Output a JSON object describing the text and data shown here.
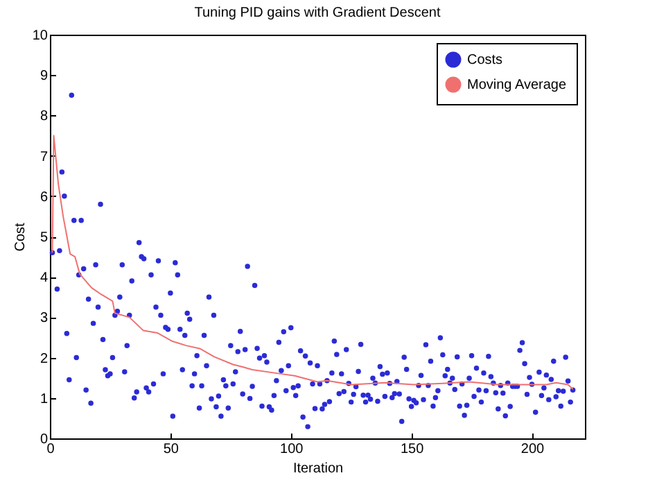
{
  "chart_data": {
    "type": "scatter",
    "title": "Tuning PID gains with Gradient Descent",
    "xlabel": "Iteration",
    "ylabel": "Cost",
    "xlim": [
      0,
      222
    ],
    "xticks": [
      0,
      50,
      100,
      150,
      200
    ],
    "ylim": [
      0,
      10
    ],
    "yticks": [
      0,
      1,
      2,
      3,
      4,
      5,
      6,
      7,
      8,
      9,
      10
    ],
    "grid": false,
    "legend": "top right",
    "series": [
      {
        "name": "Costs",
        "marker": "circle",
        "color": "#2b2bd6",
        "x": [
          1,
          3,
          4,
          5,
          6,
          7,
          8,
          9,
          10,
          11,
          12,
          13,
          14,
          15,
          16,
          17,
          18,
          19,
          20,
          21,
          22,
          23,
          24,
          25,
          26,
          27,
          28,
          29,
          30,
          31,
          32,
          33,
          34,
          35,
          36,
          37,
          38,
          39,
          40,
          41,
          42,
          43,
          44,
          45,
          46,
          47,
          48,
          49,
          50,
          51,
          52,
          53,
          54,
          55,
          56,
          57,
          58,
          59,
          60,
          61,
          62,
          63,
          64,
          65,
          66,
          67,
          68,
          69,
          70,
          71,
          72,
          73,
          74,
          75,
          76,
          77,
          78,
          79,
          80,
          81,
          82,
          83,
          84,
          85,
          86,
          87,
          88,
          89,
          90,
          91,
          92,
          93,
          94,
          95,
          96,
          97,
          98,
          99,
          100,
          101,
          102,
          103,
          104,
          105,
          106,
          107,
          108,
          109,
          110,
          111,
          112,
          113,
          114,
          115,
          116,
          117,
          118,
          119,
          120,
          121,
          122,
          123,
          124,
          125,
          126,
          127,
          128,
          129,
          130,
          131,
          132,
          133,
          134,
          135,
          136,
          137,
          138,
          139,
          140,
          141,
          142,
          143,
          144,
          145,
          146,
          147,
          148,
          149,
          150,
          151,
          152,
          153,
          154,
          155,
          156,
          157,
          158,
          159,
          160,
          161,
          162,
          163,
          164,
          165,
          166,
          167,
          168,
          169,
          170,
          171,
          172,
          173,
          174,
          175,
          176,
          177,
          178,
          179,
          180,
          181,
          182,
          183,
          184,
          185,
          186,
          187,
          188,
          189,
          190,
          191,
          192,
          193,
          194,
          195,
          196,
          197,
          198,
          199,
          200,
          201.5,
          203,
          204,
          205,
          206,
          207,
          208,
          209,
          210,
          211,
          212,
          213,
          214,
          215,
          216,
          217
        ],
        "values": [
          4.6,
          3.7,
          4.65,
          6.6,
          6.0,
          2.6,
          1.45,
          8.5,
          5.4,
          2.0,
          4.05,
          5.4,
          4.2,
          1.2,
          3.45,
          0.87,
          2.85,
          4.3,
          3.25,
          5.8,
          2.45,
          1.7,
          1.55,
          1.6,
          2.0,
          3.05,
          3.15,
          3.5,
          4.3,
          1.65,
          2.3,
          3.05,
          3.9,
          1.0,
          1.15,
          4.85,
          4.5,
          4.45,
          1.25,
          1.15,
          4.05,
          1.35,
          3.25,
          4.4,
          3.05,
          1.6,
          2.75,
          2.7,
          3.6,
          0.55,
          4.35,
          4.05,
          2.7,
          1.7,
          2.55,
          3.1,
          2.95,
          1.3,
          1.6,
          2.05,
          0.75,
          1.3,
          2.55,
          1.8,
          3.5,
          0.98,
          3.05,
          0.78,
          1.05,
          0.55,
          1.45,
          1.3,
          0.75,
          2.3,
          1.35,
          1.65,
          2.15,
          2.65,
          1.1,
          2.2,
          4.26,
          0.99,
          1.29,
          3.79,
          2.23,
          1.99,
          0.8,
          2.05,
          1.89,
          0.78,
          0.7,
          1.06,
          1.43,
          2.38,
          1.68,
          2.64,
          1.18,
          1.8,
          2.74,
          1.26,
          1.06,
          1.3,
          2.17,
          0.53,
          2.04,
          0.29,
          1.87,
          1.35,
          0.74,
          1.8,
          1.35,
          0.73,
          0.84,
          1.43,
          0.91,
          1.62,
          2.41,
          2.08,
          1.11,
          1.6,
          1.16,
          2.2,
          1.36,
          0.9,
          1.09,
          1.28,
          1.66,
          2.33,
          1.07,
          0.9,
          1.07,
          0.97,
          1.49,
          1.37,
          0.92,
          1.78,
          1.59,
          1.04,
          1.62,
          1.36,
          1.01,
          1.11,
          1.41,
          1.1,
          0.42,
          2.01,
          1.71,
          0.98,
          0.79,
          0.94,
          0.88,
          1.31,
          1.56,
          0.96,
          2.32,
          1.31,
          1.91,
          0.8,
          1.01,
          1.18,
          2.49,
          2.07,
          1.55,
          1.71,
          1.37,
          1.49,
          1.21,
          2.02,
          0.8,
          1.35,
          0.57,
          0.82,
          1.49,
          2.05,
          1.04,
          1.74,
          1.2,
          0.9,
          1.62,
          1.18,
          2.03,
          1.53,
          1.37,
          1.13,
          0.73,
          1.31,
          1.12,
          0.56,
          1.37,
          0.79,
          1.29,
          1.29,
          1.29,
          2.18,
          2.37,
          1.85,
          1.09,
          1.51,
          1.34,
          0.65,
          1.64,
          1.06,
          1.25,
          1.57,
          0.96,
          1.46,
          1.91,
          1.03,
          1.18,
          0.8,
          1.17,
          2.01,
          1.42,
          0.9,
          1.2
        ]
      },
      {
        "name": "Moving Average",
        "type": "line",
        "color": "#f07070",
        "x": [
          1,
          1.6,
          3.5,
          5.5,
          8.4,
          10.4,
          12.4,
          17.3,
          21.2,
          26,
          27,
          33,
          38.8,
          44.7,
          50.6,
          56.5,
          62.4,
          68.2,
          76,
          80,
          84,
          95.7,
          101.6,
          111,
          115,
          125,
          139,
          151,
          163,
          174,
          186,
          198,
          206,
          210,
          215,
          217
        ],
        "values": [
          4.6,
          7.5,
          6.3,
          5.5,
          4.57,
          4.5,
          4.07,
          3.73,
          3.57,
          3.4,
          3.1,
          3.0,
          2.67,
          2.61,
          2.41,
          2.3,
          2.22,
          2.02,
          1.83,
          1.77,
          1.7,
          1.6,
          1.55,
          1.4,
          1.43,
          1.33,
          1.38,
          1.33,
          1.36,
          1.4,
          1.33,
          1.33,
          1.33,
          1.38,
          1.33,
          1.22
        ]
      }
    ]
  }
}
